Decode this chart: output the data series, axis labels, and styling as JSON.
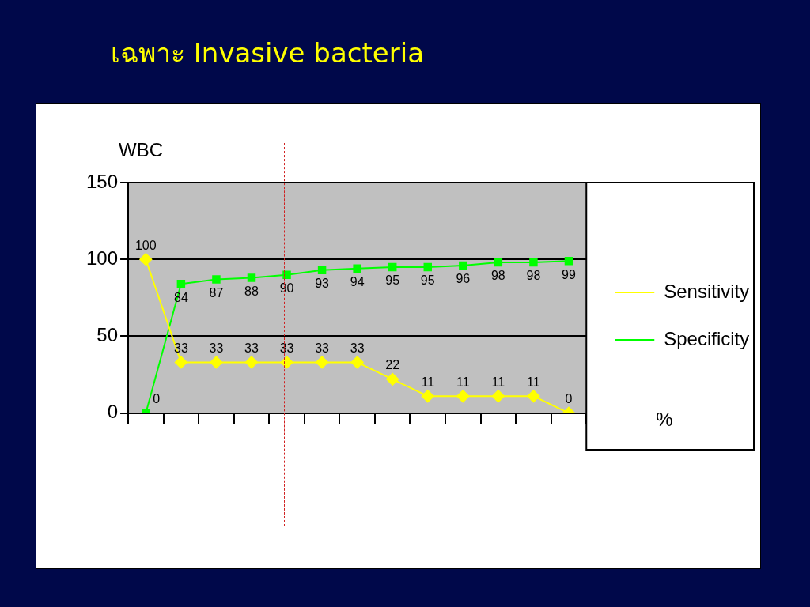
{
  "chart_data": {
    "type": "line",
    "title": "เฉพาะ Invasive bacteria",
    "ylabel": "WBC",
    "xlabel": "%",
    "categories": [
      null,
      null,
      null,
      null,
      null,
      null,
      null,
      null,
      null,
      null,
      null,
      null,
      null
    ],
    "series": [
      {
        "name": "Sensitivity",
        "color": "#ffff00",
        "marker": "diamond",
        "values": [
          100,
          33,
          33,
          33,
          33,
          33,
          33,
          22,
          11,
          11,
          11,
          11,
          0
        ]
      },
      {
        "name": "Specificity",
        "color": "#00ff00",
        "marker": "square",
        "values": [
          0,
          84,
          87,
          88,
          90,
          93,
          94,
          95,
          95,
          96,
          98,
          98,
          99
        ]
      }
    ],
    "ylim": [
      0,
      150
    ],
    "yticks": [
      0,
      50,
      100,
      150
    ],
    "grid": "y",
    "legend": "right",
    "data_labels": true,
    "line_style": "solid"
  }
}
